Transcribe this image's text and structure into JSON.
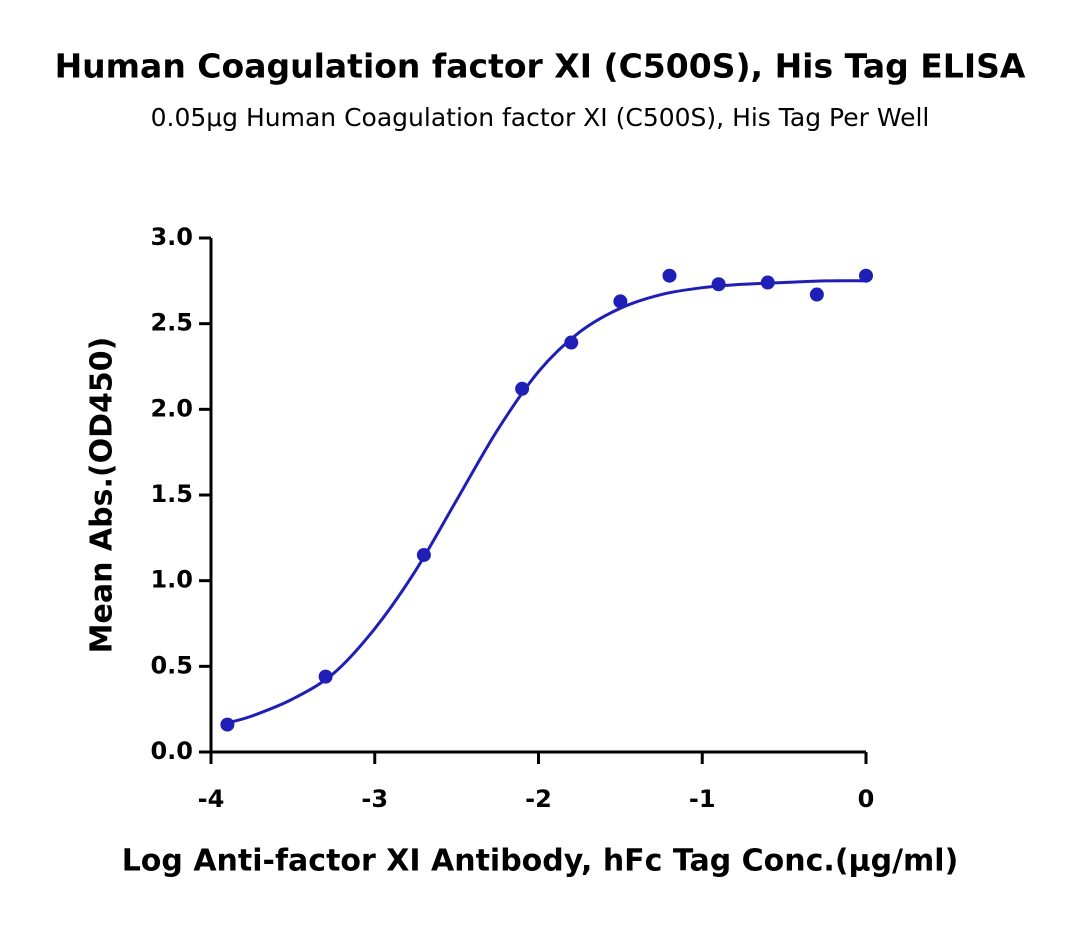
{
  "chart_data": {
    "type": "scatter",
    "title": "Human Coagulation factor XI (C500S), His Tag ELISA",
    "subtitle": "0.05μg Human Coagulation factor XI (C500S), His Tag Per Well",
    "x_label": "Log Anti-factor XI Antibody, hFc Tag Conc.(μg/ml)",
    "y_label": "Mean Abs.(OD450)",
    "xlim": [
      -4,
      0
    ],
    "xticks": [
      -4,
      -3,
      -2,
      -1,
      0
    ],
    "ylim": [
      0,
      3
    ],
    "yticks": [
      {
        "value": 0,
        "label": "0.0"
      },
      {
        "value": 0.5,
        "label": "0.5"
      },
      {
        "value": 1,
        "label": "1.0"
      },
      {
        "value": 1.5,
        "label": "1.5"
      },
      {
        "value": 2,
        "label": "2.0"
      },
      {
        "value": 2.5,
        "label": "2.5"
      },
      {
        "value": 3,
        "label": "3.0"
      }
    ],
    "series": [
      {
        "mode": "markers",
        "color": "#1f1fb8",
        "x": [
          -3.9,
          -3.3,
          -2.7,
          -2.1,
          -1.8,
          -1.5,
          -1.2,
          -0.9,
          -0.6,
          -0.3,
          0
        ],
        "values": [
          0.16,
          0.44,
          1.15,
          2.12,
          2.39,
          2.63,
          2.78,
          2.73,
          2.74,
          2.67,
          2.78
        ]
      },
      {
        "mode": "line",
        "color": "#1f1fb8",
        "x": [
          -3.9,
          -3.75,
          -3.5,
          -3.25,
          -3.0,
          -2.75,
          -2.5,
          -2.25,
          -2.0,
          -1.75,
          -1.5,
          -1.25,
          -1.0,
          -0.75,
          -0.5,
          -0.25,
          0
        ],
        "values": [
          0.17,
          0.21,
          0.31,
          0.46,
          0.72,
          1.06,
          1.47,
          1.88,
          2.22,
          2.45,
          2.59,
          2.67,
          2.71,
          2.73,
          2.74,
          2.75,
          2.75
        ]
      }
    ]
  }
}
